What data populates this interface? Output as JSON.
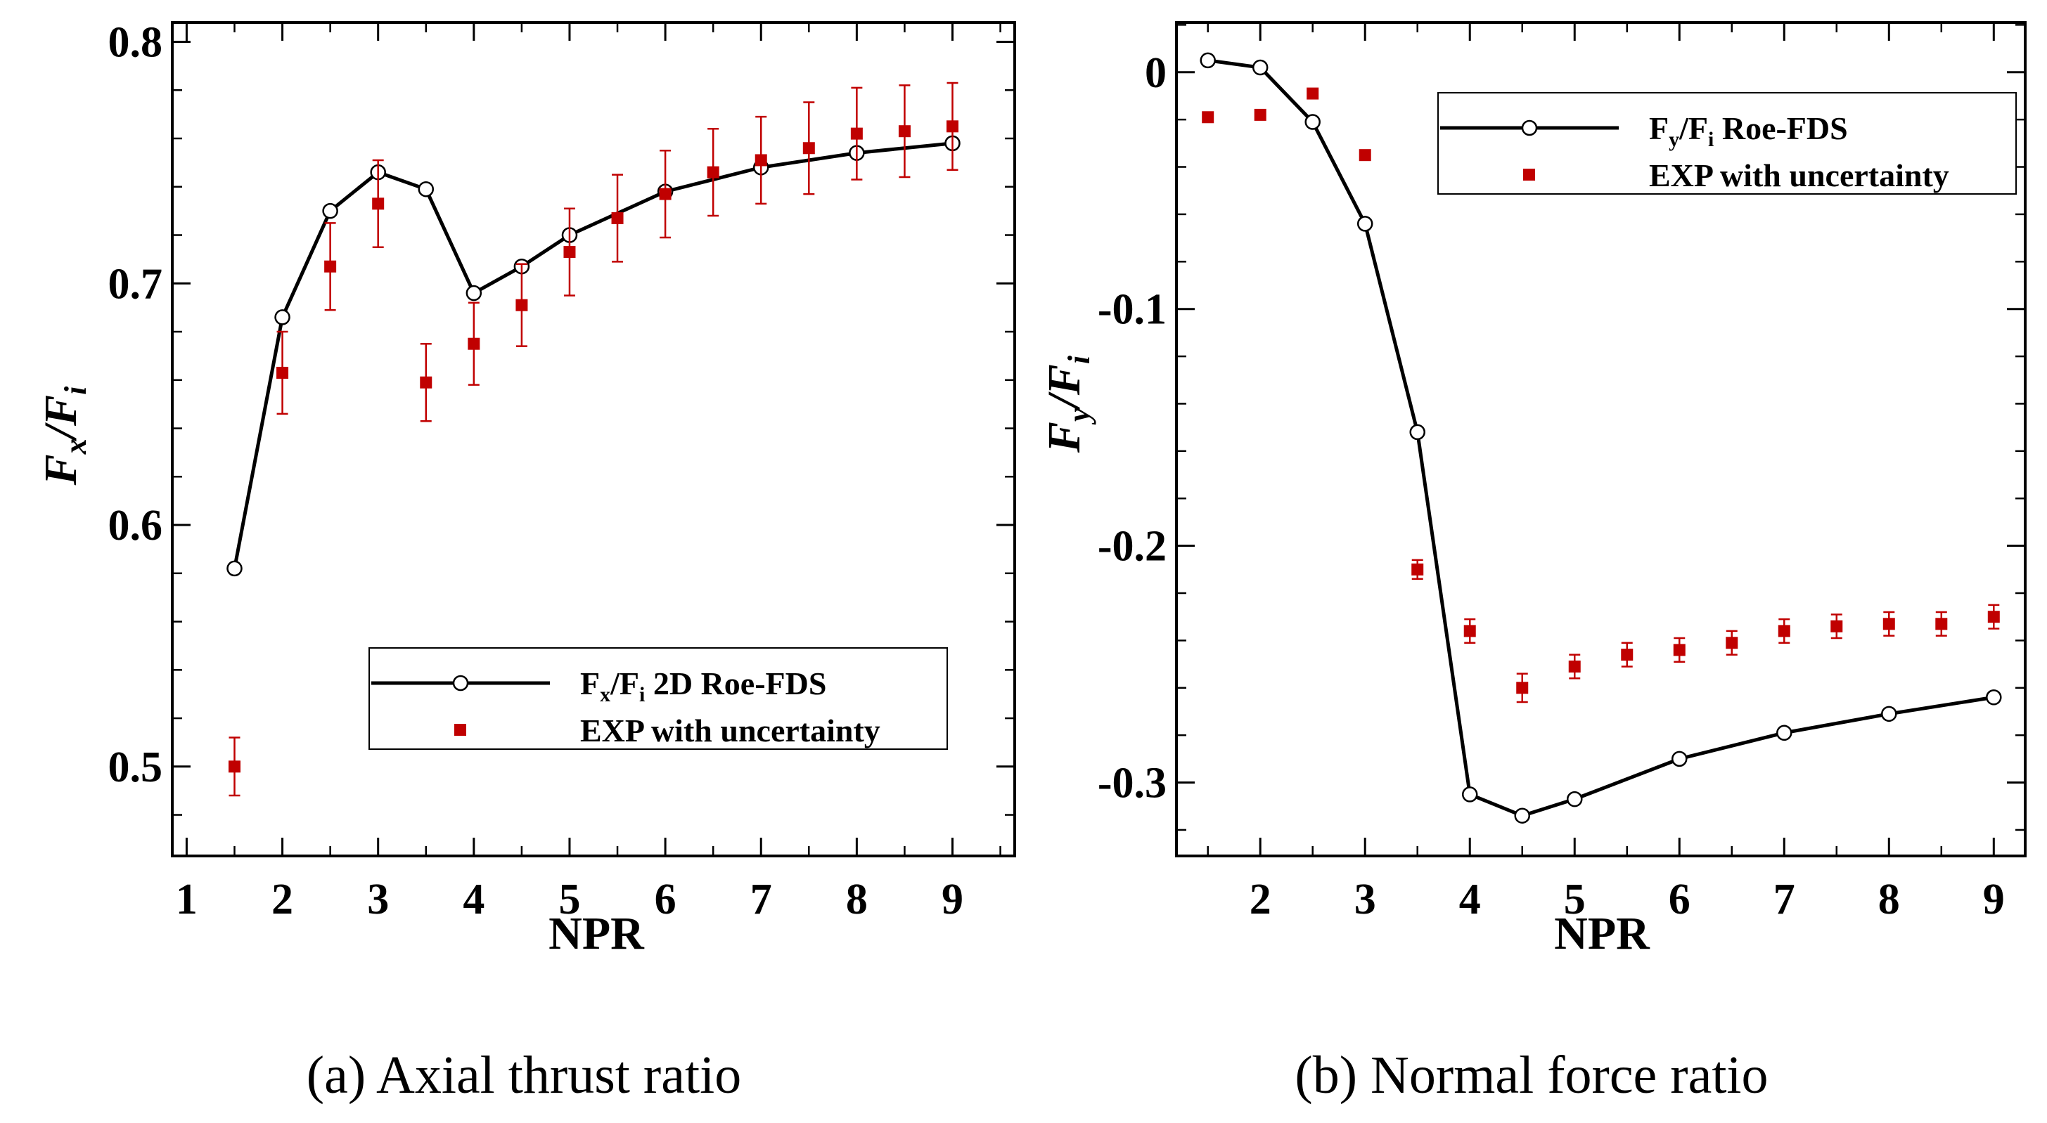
{
  "chart_data": [
    {
      "type": "line",
      "caption": "(a) Axial thrust ratio",
      "xlabel": "NPR",
      "ylabel": "F_x/F_i",
      "ylabel_parts": {
        "main1": "F",
        "sub1": "x",
        "slash": "/",
        "main2": "F",
        "sub2": "i"
      },
      "xlim": [
        0.85,
        9.65
      ],
      "ylim": [
        0.463,
        0.808
      ],
      "xticks": [
        "1",
        "2",
        "3",
        "4",
        "5",
        "6",
        "7",
        "8",
        "9"
      ],
      "yticks": [
        "0.5",
        "0.6",
        "0.7",
        "0.8"
      ],
      "series": [
        {
          "name": "F_x/F_i 2D Roe-FDS",
          "style": "line-circle",
          "x": [
            1.5,
            2,
            2.5,
            3,
            3.5,
            4,
            4.5,
            5,
            6,
            7,
            8,
            9
          ],
          "y": [
            0.582,
            0.686,
            0.73,
            0.746,
            0.739,
            0.696,
            0.707,
            0.72,
            0.738,
            0.748,
            0.754,
            0.758
          ]
        },
        {
          "name": "EXP with uncertainty",
          "style": "square-errorbar",
          "x": [
            1.5,
            2,
            2.5,
            3,
            3.5,
            4,
            4.5,
            5,
            5.5,
            6,
            6.5,
            7,
            7.5,
            8,
            8.5,
            9
          ],
          "y": [
            0.5,
            0.663,
            0.707,
            0.733,
            0.659,
            0.675,
            0.691,
            0.713,
            0.727,
            0.737,
            0.746,
            0.751,
            0.756,
            0.762,
            0.763,
            0.765
          ],
          "err": [
            0.012,
            0.017,
            0.018,
            0.018,
            0.016,
            0.017,
            0.017,
            0.018,
            0.018,
            0.018,
            0.018,
            0.018,
            0.019,
            0.019,
            0.019,
            0.018
          ]
        }
      ],
      "legend": {
        "location": "lower-right",
        "entries": [
          {
            "main1": "F",
            "sub1": "x",
            "slash": "/",
            "main2": "F",
            "sub2": "i",
            "rest": " 2D Roe-FDS"
          },
          {
            "text": "EXP with uncertainty"
          }
        ]
      }
    },
    {
      "type": "line",
      "caption": "(b) Normal force ratio",
      "xlabel": "NPR",
      "ylabel": "F_y/F_i",
      "ylabel_parts": {
        "main1": "F",
        "sub1": "y",
        "slash": "/",
        "main2": "F",
        "sub2": "i"
      },
      "xlim": [
        1.2,
        9.3
      ],
      "ylim": [
        -0.331,
        0.021
      ],
      "xticks": [
        "2",
        "3",
        "4",
        "5",
        "6",
        "7",
        "8",
        "9"
      ],
      "yticks": [
        "0",
        "-0.1",
        "-0.2",
        "-0.3"
      ],
      "series": [
        {
          "name": "F_y/F_i Roe-FDS",
          "style": "line-circle",
          "x": [
            1.5,
            2,
            2.5,
            3,
            3.5,
            4,
            4.5,
            5,
            6,
            7,
            8,
            9
          ],
          "y": [
            0.005,
            0.002,
            -0.021,
            -0.064,
            -0.152,
            -0.305,
            -0.314,
            -0.307,
            -0.29,
            -0.279,
            -0.271,
            -0.264
          ]
        },
        {
          "name": "EXP with uncertainty",
          "style": "square-errorbar",
          "x": [
            1.5,
            2,
            2.5,
            3,
            3.5,
            4,
            4.5,
            5,
            5.5,
            6,
            6.5,
            7,
            7.5,
            8,
            8.5,
            9
          ],
          "y": [
            -0.019,
            -0.018,
            -0.009,
            -0.035,
            -0.21,
            -0.236,
            -0.26,
            -0.251,
            -0.246,
            -0.244,
            -0.241,
            -0.236,
            -0.234,
            -0.233,
            -0.233,
            -0.23
          ],
          "err": [
            0,
            0,
            0,
            0,
            0.004,
            0.005,
            0.006,
            0.005,
            0.005,
            0.005,
            0.005,
            0.005,
            0.005,
            0.005,
            0.005,
            0.005
          ]
        }
      ],
      "legend": {
        "location": "top-right",
        "entries": [
          {
            "main1": "F",
            "sub1": "y",
            "slash": "/",
            "main2": "F",
            "sub2": "i",
            "rest": " Roe-FDS"
          },
          {
            "text": "EXP with uncertainty"
          }
        ]
      }
    }
  ],
  "colors": {
    "line": "#000000",
    "marker_exp": "#c00000"
  }
}
